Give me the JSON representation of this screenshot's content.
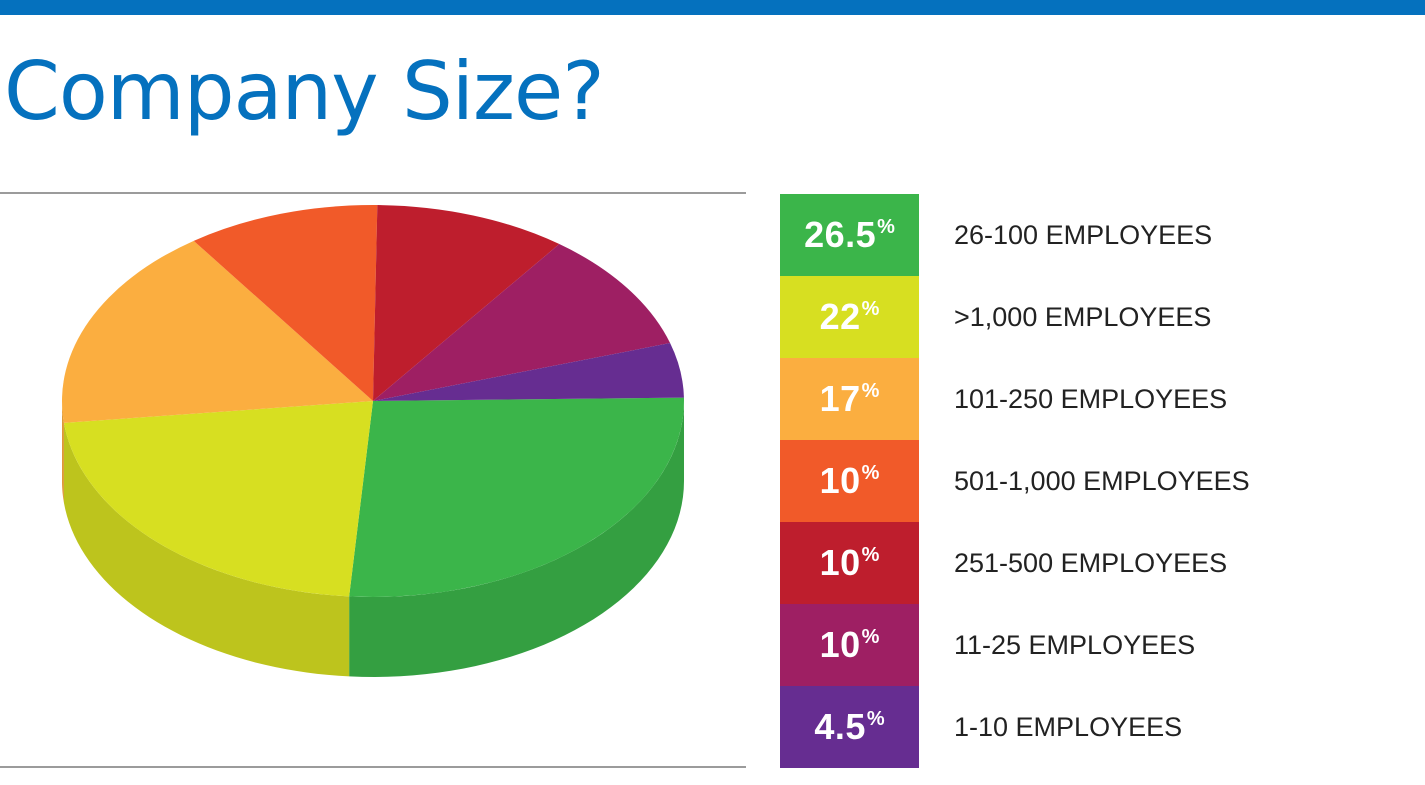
{
  "header": {
    "title": "Company Size?",
    "accent_color": "#0571be"
  },
  "chart_data": {
    "type": "pie",
    "title": "Company Size?",
    "style": "3d",
    "start_series": "26-100 EMPLOYEES",
    "series": [
      {
        "name": "26-100 EMPLOYEES",
        "value": 26.5,
        "label": "26.5",
        "color": "#3bb54a"
      },
      {
        "name": ">1,000 EMPLOYEES",
        "value": 22,
        "label": "22",
        "color": "#d7df21"
      },
      {
        "name": "101-250 EMPLOYEES",
        "value": 17,
        "label": "17",
        "color": "#fbae40"
      },
      {
        "name": "501-1,000 EMPLOYEES",
        "value": 10,
        "label": "10",
        "color": "#f15a29"
      },
      {
        "name": "251-500 EMPLOYEES",
        "value": 10,
        "label": "10",
        "color": "#be1e2d"
      },
      {
        "name": "11-25 EMPLOYEES",
        "value": 10,
        "label": "10",
        "color": "#9e1f63"
      },
      {
        "name": "1-10 EMPLOYEES",
        "value": 4.5,
        "label": "4.5",
        "color": "#662d91"
      }
    ],
    "percent_sign": "%",
    "legend_position": "right"
  }
}
